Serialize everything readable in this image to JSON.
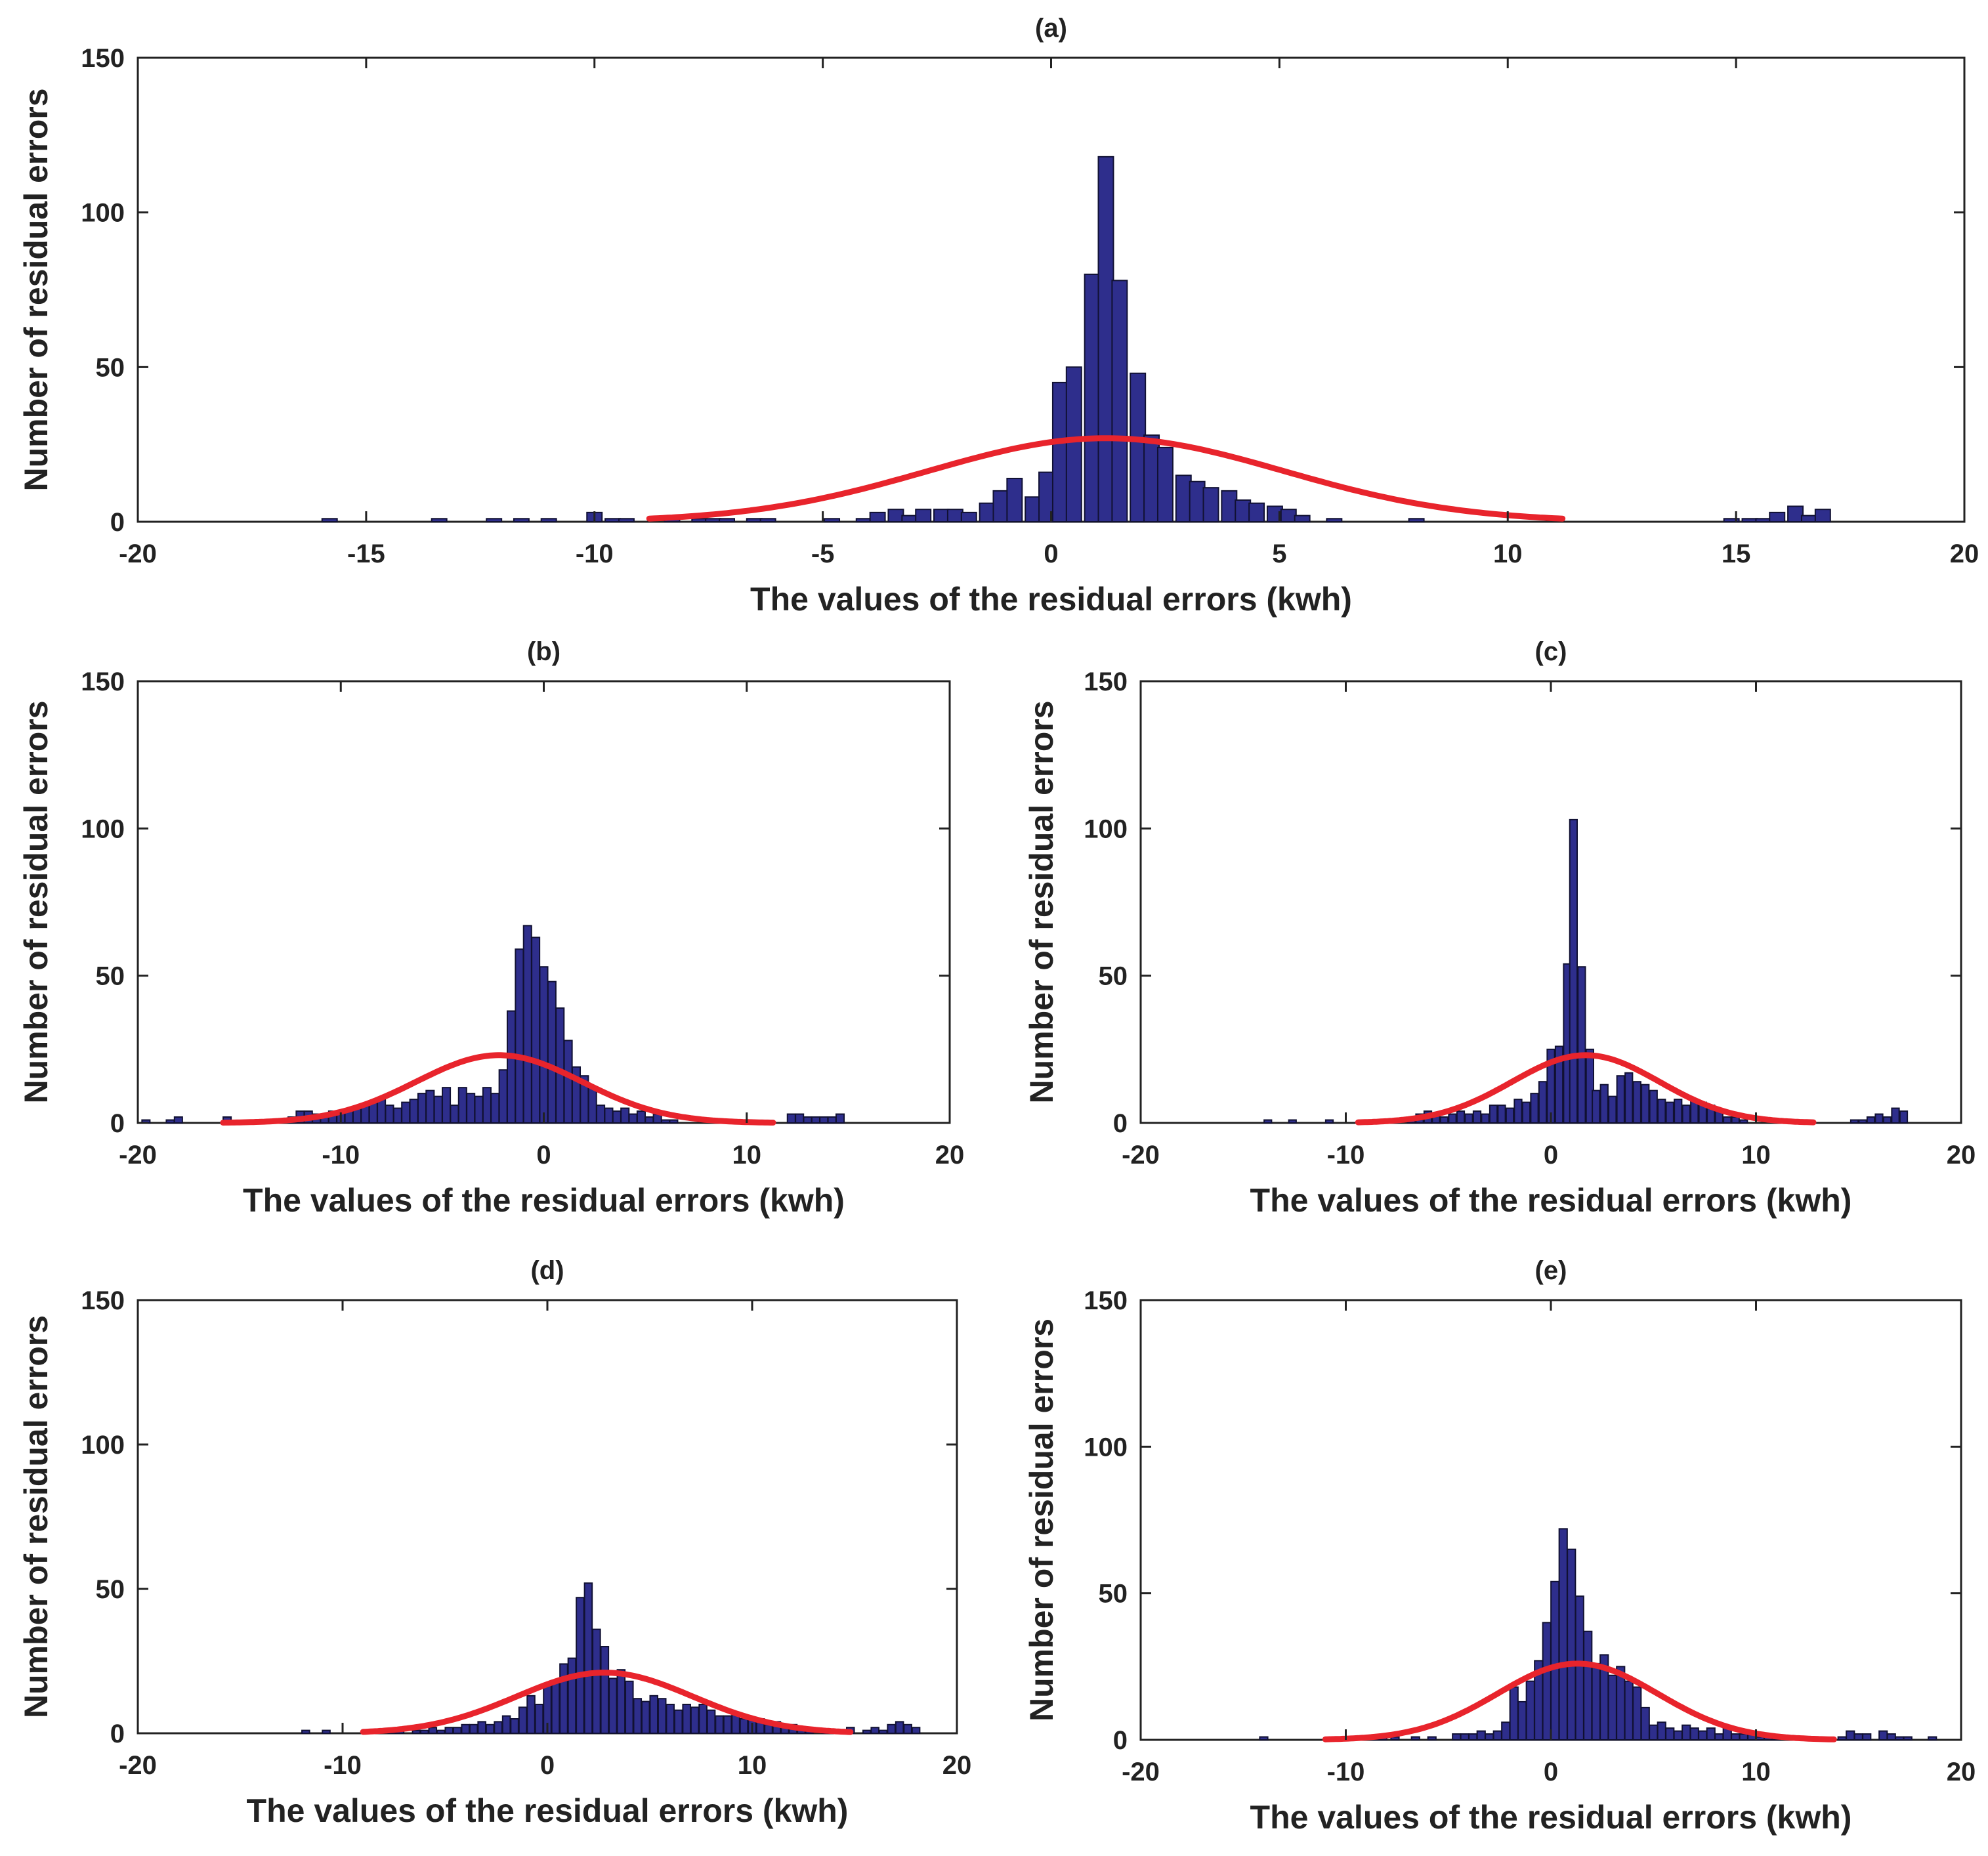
{
  "colors": {
    "bar_fill": "#2e2e8c",
    "bar_edge": "#111133",
    "fit_curve": "#e8242c",
    "axes": "#222222"
  },
  "chart_data": [
    {
      "type": "bar",
      "panel": "(a)",
      "title": "(a)",
      "xlabel": "The values of the residual errors (kwh)",
      "ylabel": "Number of residual errors",
      "xlim": [
        -20,
        20
      ],
      "ylim": [
        0,
        150
      ],
      "xticks": [
        -20,
        -15,
        -10,
        -5,
        0,
        5,
        10,
        15,
        20
      ],
      "yticks": [
        0,
        50,
        100,
        150
      ],
      "xtick_labels": [
        "-20",
        "-15",
        "-10",
        "-5",
        "0",
        "5",
        "10",
        "15",
        "20"
      ],
      "ytick_labels": [
        "0",
        "50",
        "100",
        "150"
      ],
      "bin_width": 0.33,
      "bins": [
        [
          -15.8,
          1
        ],
        [
          -13.4,
          1
        ],
        [
          -12.2,
          1
        ],
        [
          -11.6,
          1
        ],
        [
          -11.0,
          1
        ],
        [
          -10.0,
          3
        ],
        [
          -9.6,
          1
        ],
        [
          -9.3,
          1
        ],
        [
          -8.3,
          1
        ],
        [
          -7.7,
          1
        ],
        [
          -7.4,
          1
        ],
        [
          -7.1,
          1
        ],
        [
          -6.5,
          1
        ],
        [
          -6.2,
          1
        ],
        [
          -4.8,
          1
        ],
        [
          -4.1,
          1
        ],
        [
          -3.8,
          3
        ],
        [
          -3.4,
          4
        ],
        [
          -3.1,
          2
        ],
        [
          -2.8,
          4
        ],
        [
          -2.4,
          4
        ],
        [
          -2.1,
          4
        ],
        [
          -1.8,
          3
        ],
        [
          -1.4,
          6
        ],
        [
          -1.1,
          10
        ],
        [
          -0.8,
          14
        ],
        [
          -0.4,
          8
        ],
        [
          -0.1,
          16
        ],
        [
          0.2,
          45
        ],
        [
          0.5,
          50
        ],
        [
          0.9,
          80
        ],
        [
          1.2,
          118
        ],
        [
          1.5,
          78
        ],
        [
          1.9,
          48
        ],
        [
          2.2,
          28
        ],
        [
          2.5,
          24
        ],
        [
          2.9,
          15
        ],
        [
          3.2,
          13
        ],
        [
          3.5,
          11
        ],
        [
          3.9,
          10
        ],
        [
          4.2,
          7
        ],
        [
          4.5,
          6
        ],
        [
          4.9,
          5
        ],
        [
          5.2,
          4
        ],
        [
          5.5,
          2
        ],
        [
          6.2,
          1
        ],
        [
          8.0,
          1
        ],
        [
          14.9,
          1
        ],
        [
          15.3,
          1
        ],
        [
          15.6,
          1
        ],
        [
          15.9,
          3
        ],
        [
          16.3,
          5
        ],
        [
          16.6,
          2
        ],
        [
          16.9,
          4
        ]
      ],
      "fit_curve": {
        "type": "normal",
        "mean": 1.2,
        "peak": 27,
        "sigma": 3.9,
        "x_range": [
          -8.8,
          11.2
        ]
      }
    },
    {
      "type": "bar",
      "panel": "(b)",
      "title": "(b)",
      "xlabel": "The values of the residual errors (kwh)",
      "ylabel": "Number of residual errors",
      "xlim": [
        -20,
        20
      ],
      "ylim": [
        0,
        150
      ],
      "xticks": [
        -20,
        -10,
        0,
        10,
        20
      ],
      "yticks": [
        0,
        50,
        100,
        150
      ],
      "xtick_labels": [
        "-20",
        "-10",
        "0",
        "10",
        "20"
      ],
      "ytick_labels": [
        "0",
        "50",
        "100",
        "150"
      ],
      "bin_width": 0.39,
      "bins": [
        [
          -19.6,
          1
        ],
        [
          -18.4,
          1
        ],
        [
          -18.0,
          2
        ],
        [
          -15.6,
          2
        ],
        [
          -14.0,
          1
        ],
        [
          -13.2,
          1
        ],
        [
          -12.4,
          2
        ],
        [
          -12.0,
          4
        ],
        [
          -11.6,
          4
        ],
        [
          -11.2,
          3
        ],
        [
          -10.8,
          3
        ],
        [
          -10.4,
          4
        ],
        [
          -10.0,
          4
        ],
        [
          -9.6,
          4
        ],
        [
          -9.2,
          5
        ],
        [
          -8.8,
          6
        ],
        [
          -8.4,
          7
        ],
        [
          -8.0,
          8
        ],
        [
          -7.6,
          6
        ],
        [
          -7.2,
          5
        ],
        [
          -6.8,
          7
        ],
        [
          -6.4,
          8
        ],
        [
          -6.0,
          10
        ],
        [
          -5.6,
          11
        ],
        [
          -5.2,
          9
        ],
        [
          -4.8,
          12
        ],
        [
          -4.4,
          6
        ],
        [
          -4.0,
          12
        ],
        [
          -3.6,
          10
        ],
        [
          -3.2,
          9
        ],
        [
          -2.8,
          12
        ],
        [
          -2.4,
          10
        ],
        [
          -2.0,
          18
        ],
        [
          -1.6,
          38
        ],
        [
          -1.2,
          59
        ],
        [
          -0.8,
          67
        ],
        [
          -0.4,
          63
        ],
        [
          0.0,
          53
        ],
        [
          0.4,
          48
        ],
        [
          0.8,
          39
        ],
        [
          1.2,
          28
        ],
        [
          1.6,
          19
        ],
        [
          2.0,
          16
        ],
        [
          2.4,
          12
        ],
        [
          2.8,
          6
        ],
        [
          3.2,
          5
        ],
        [
          3.6,
          4
        ],
        [
          4.0,
          5
        ],
        [
          4.4,
          3
        ],
        [
          4.8,
          4
        ],
        [
          5.2,
          2
        ],
        [
          5.6,
          3
        ],
        [
          6.0,
          1
        ],
        [
          6.4,
          1
        ],
        [
          12.2,
          3
        ],
        [
          12.6,
          3
        ],
        [
          13.0,
          2
        ],
        [
          13.4,
          2
        ],
        [
          13.8,
          2
        ],
        [
          14.2,
          2
        ],
        [
          14.6,
          3
        ]
      ],
      "fit_curve": {
        "type": "normal",
        "mean": -2.2,
        "peak": 23,
        "sigma": 4.1,
        "x_range": [
          -15.8,
          11.3
        ]
      }
    },
    {
      "type": "bar",
      "panel": "(c)",
      "title": "(c)",
      "xlabel": "The values of the residual errors (kwh)",
      "ylabel": "Number of residual errors",
      "xlim": [
        -20,
        20
      ],
      "ylim": [
        0,
        150
      ],
      "xticks": [
        -20,
        -10,
        0,
        10,
        20
      ],
      "yticks": [
        0,
        50,
        100,
        150
      ],
      "xtick_labels": [
        "-20",
        "-10",
        "0",
        "10",
        "20"
      ],
      "ytick_labels": [
        "0",
        "50",
        "100",
        "150"
      ],
      "bin_width": 0.36,
      "bins": [
        [
          -13.8,
          1
        ],
        [
          -12.6,
          1
        ],
        [
          -10.8,
          1
        ],
        [
          -9.0,
          1
        ],
        [
          -8.4,
          1
        ],
        [
          -7.6,
          1
        ],
        [
          -6.8,
          2
        ],
        [
          -6.4,
          3
        ],
        [
          -6.0,
          4
        ],
        [
          -5.6,
          3
        ],
        [
          -5.2,
          2
        ],
        [
          -4.8,
          3
        ],
        [
          -4.4,
          4
        ],
        [
          -4.0,
          3
        ],
        [
          -3.6,
          4
        ],
        [
          -3.2,
          3
        ],
        [
          -2.8,
          6
        ],
        [
          -2.4,
          6
        ],
        [
          -2.0,
          5
        ],
        [
          -1.6,
          8
        ],
        [
          -1.2,
          7
        ],
        [
          -0.8,
          10
        ],
        [
          -0.4,
          14
        ],
        [
          0.0,
          25
        ],
        [
          0.4,
          26
        ],
        [
          0.8,
          54
        ],
        [
          1.1,
          103
        ],
        [
          1.5,
          53
        ],
        [
          1.9,
          25
        ],
        [
          2.2,
          11
        ],
        [
          2.6,
          13
        ],
        [
          3.0,
          9
        ],
        [
          3.4,
          16
        ],
        [
          3.8,
          17
        ],
        [
          4.2,
          14
        ],
        [
          4.6,
          13
        ],
        [
          5.0,
          11
        ],
        [
          5.4,
          8
        ],
        [
          5.8,
          7
        ],
        [
          6.2,
          8
        ],
        [
          6.6,
          6
        ],
        [
          7.0,
          8
        ],
        [
          7.4,
          7
        ],
        [
          7.8,
          6
        ],
        [
          8.2,
          4
        ],
        [
          8.6,
          2
        ],
        [
          9.0,
          2
        ],
        [
          9.4,
          1
        ],
        [
          14.8,
          1
        ],
        [
          15.2,
          1
        ],
        [
          15.6,
          2
        ],
        [
          16.0,
          3
        ],
        [
          16.4,
          2
        ],
        [
          16.8,
          5
        ],
        [
          17.2,
          4
        ]
      ],
      "fit_curve": {
        "type": "normal",
        "mean": 1.7,
        "peak": 23,
        "sigma": 3.6,
        "x_range": [
          -9.4,
          12.8
        ]
      }
    },
    {
      "type": "bar",
      "panel": "(d)",
      "title": "(d)",
      "xlabel": "The values of the residual errors (kwh)",
      "ylabel": "Number of residual errors",
      "xlim": [
        -20,
        20
      ],
      "ylim": [
        0,
        150
      ],
      "xticks": [
        -20,
        -10,
        0,
        10,
        20
      ],
      "yticks": [
        0,
        50,
        100,
        150
      ],
      "xtick_labels": [
        "-20",
        "-10",
        "0",
        "10",
        "20"
      ],
      "ytick_labels": [
        "0",
        "50",
        "100",
        "150"
      ],
      "bin_width": 0.37,
      "bins": [
        [
          -11.8,
          1
        ],
        [
          -10.8,
          1
        ],
        [
          -8.8,
          1
        ],
        [
          -8.4,
          1
        ],
        [
          -7.6,
          1
        ],
        [
          -7.2,
          1
        ],
        [
          -6.4,
          1
        ],
        [
          -6.0,
          1
        ],
        [
          -5.6,
          2
        ],
        [
          -5.2,
          1
        ],
        [
          -4.8,
          2
        ],
        [
          -4.4,
          2
        ],
        [
          -4.0,
          3
        ],
        [
          -3.6,
          3
        ],
        [
          -3.2,
          4
        ],
        [
          -2.8,
          3
        ],
        [
          -2.4,
          4
        ],
        [
          -2.0,
          6
        ],
        [
          -1.6,
          5
        ],
        [
          -1.2,
          9
        ],
        [
          -0.8,
          13
        ],
        [
          -0.4,
          10
        ],
        [
          0.0,
          17
        ],
        [
          0.4,
          18
        ],
        [
          0.8,
          24
        ],
        [
          1.2,
          26
        ],
        [
          1.6,
          47
        ],
        [
          2.0,
          52
        ],
        [
          2.4,
          36
        ],
        [
          2.8,
          30
        ],
        [
          3.2,
          19
        ],
        [
          3.6,
          22
        ],
        [
          4.0,
          18
        ],
        [
          4.4,
          12
        ],
        [
          4.8,
          11
        ],
        [
          5.2,
          13
        ],
        [
          5.6,
          12
        ],
        [
          6.0,
          10
        ],
        [
          6.4,
          8
        ],
        [
          6.8,
          10
        ],
        [
          7.2,
          9
        ],
        [
          7.6,
          10
        ],
        [
          8.0,
          8
        ],
        [
          8.4,
          6
        ],
        [
          8.8,
          6
        ],
        [
          9.2,
          7
        ],
        [
          9.6,
          5
        ],
        [
          10.0,
          5
        ],
        [
          10.4,
          5
        ],
        [
          10.8,
          3
        ],
        [
          11.2,
          4
        ],
        [
          11.6,
          3
        ],
        [
          12.0,
          3
        ],
        [
          12.4,
          2
        ],
        [
          12.8,
          2
        ],
        [
          13.6,
          1
        ],
        [
          14.8,
          2
        ],
        [
          15.6,
          1
        ],
        [
          16.0,
          2
        ],
        [
          16.4,
          1
        ],
        [
          16.8,
          3
        ],
        [
          17.2,
          4
        ],
        [
          17.6,
          3
        ],
        [
          18.0,
          2
        ]
      ],
      "fit_curve": {
        "type": "normal",
        "mean": 2.8,
        "peak": 21,
        "sigma": 4.3,
        "x_range": [
          -9.0,
          14.8
        ]
      }
    },
    {
      "type": "bar",
      "panel": "(e)",
      "title": "(e)",
      "xlabel": "The values of the residual errors (kwh)",
      "ylabel": "Number of residual errors",
      "xlim": [
        -20,
        20
      ],
      "ylim": [
        0,
        150
      ],
      "xticks": [
        -20,
        -10,
        0,
        10,
        20
      ],
      "yticks": [
        0,
        50,
        100,
        150
      ],
      "xtick_labels": [
        "-20",
        "-10",
        "0",
        "10",
        "20"
      ],
      "ytick_labels": [
        "0",
        "50",
        "100",
        "150"
      ],
      "bin_width": 0.39,
      "bins": [
        [
          -14.0,
          1
        ],
        [
          -10.6,
          1
        ],
        [
          -9.8,
          1
        ],
        [
          -8.6,
          1
        ],
        [
          -8.2,
          1
        ],
        [
          -7.6,
          1
        ],
        [
          -6.6,
          1
        ],
        [
          -5.8,
          1
        ],
        [
          -4.6,
          2
        ],
        [
          -4.2,
          2
        ],
        [
          -3.8,
          2
        ],
        [
          -3.4,
          3
        ],
        [
          -3.0,
          2
        ],
        [
          -2.6,
          3
        ],
        [
          -2.2,
          6
        ],
        [
          -1.8,
          18
        ],
        [
          -1.4,
          13
        ],
        [
          -1.0,
          20
        ],
        [
          -0.6,
          27
        ],
        [
          -0.2,
          40
        ],
        [
          0.2,
          54
        ],
        [
          0.6,
          72
        ],
        [
          1.0,
          65
        ],
        [
          1.4,
          49
        ],
        [
          1.8,
          37
        ],
        [
          2.2,
          26
        ],
        [
          2.6,
          29
        ],
        [
          3.0,
          22
        ],
        [
          3.4,
          25
        ],
        [
          3.8,
          20
        ],
        [
          4.2,
          18
        ],
        [
          4.6,
          11
        ],
        [
          5.0,
          5
        ],
        [
          5.4,
          6
        ],
        [
          5.8,
          4
        ],
        [
          6.2,
          3
        ],
        [
          6.6,
          5
        ],
        [
          7.0,
          4
        ],
        [
          7.4,
          3
        ],
        [
          7.8,
          4
        ],
        [
          8.2,
          2
        ],
        [
          8.6,
          4
        ],
        [
          9.0,
          2
        ],
        [
          9.4,
          2
        ],
        [
          9.8,
          3
        ],
        [
          10.2,
          1
        ],
        [
          10.6,
          1
        ],
        [
          11.0,
          1
        ],
        [
          14.2,
          1
        ],
        [
          14.6,
          3
        ],
        [
          15.0,
          2
        ],
        [
          15.4,
          2
        ],
        [
          16.2,
          3
        ],
        [
          16.6,
          2
        ],
        [
          17.0,
          1
        ],
        [
          17.4,
          1
        ],
        [
          18.6,
          1
        ]
      ],
      "fit_curve": {
        "type": "normal",
        "mean": 1.3,
        "peak": 26,
        "sigma": 3.9,
        "x_range": [
          -11.0,
          13.8
        ]
      }
    }
  ]
}
